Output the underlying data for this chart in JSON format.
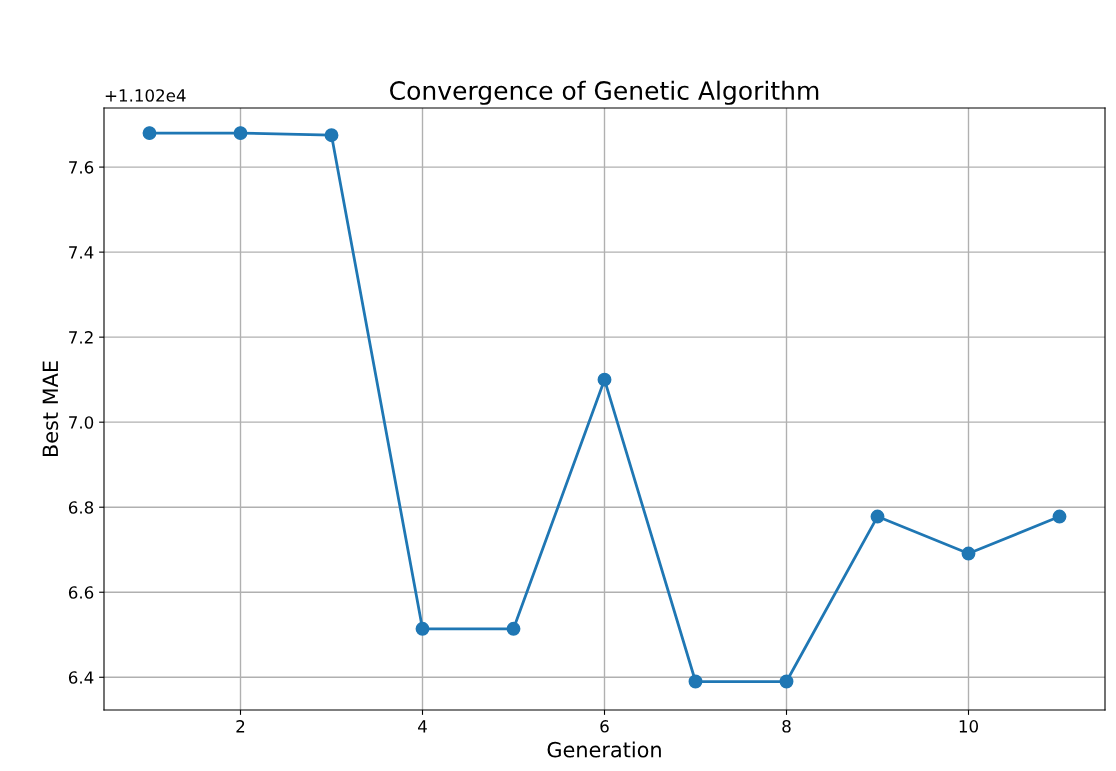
{
  "chart_data": {
    "type": "line",
    "title": "Convergence of Genetic Algorithm",
    "xlabel": "Generation",
    "ylabel": "Best MAE",
    "x": [
      1,
      2,
      3,
      4,
      5,
      6,
      7,
      8,
      9,
      10,
      11
    ],
    "series": [
      {
        "color": "#1f77b4",
        "values": [
          7.68,
          7.68,
          7.675,
          6.514,
          6.514,
          7.1,
          6.39,
          6.39,
          6.778,
          6.691,
          6.778
        ]
      }
    ],
    "xlim": [
      0.5,
      11.5
    ],
    "xticks": [
      2,
      4,
      6,
      8,
      10
    ],
    "ylim": [
      6.323,
      7.739
    ],
    "yticks": [
      {
        "value": 6.4,
        "label": "6.4"
      },
      {
        "value": 6.6,
        "label": "6.6"
      },
      {
        "value": 6.8,
        "label": "6.8"
      },
      {
        "value": 7.0,
        "label": "7.0"
      },
      {
        "value": 7.2,
        "label": "7.2"
      },
      {
        "value": 7.4,
        "label": "7.4"
      },
      {
        "value": 7.6,
        "label": "7.6"
      }
    ],
    "annotations": [
      "+1.102e4"
    ],
    "grid": true,
    "marker": "circle",
    "line_style": "solid"
  }
}
